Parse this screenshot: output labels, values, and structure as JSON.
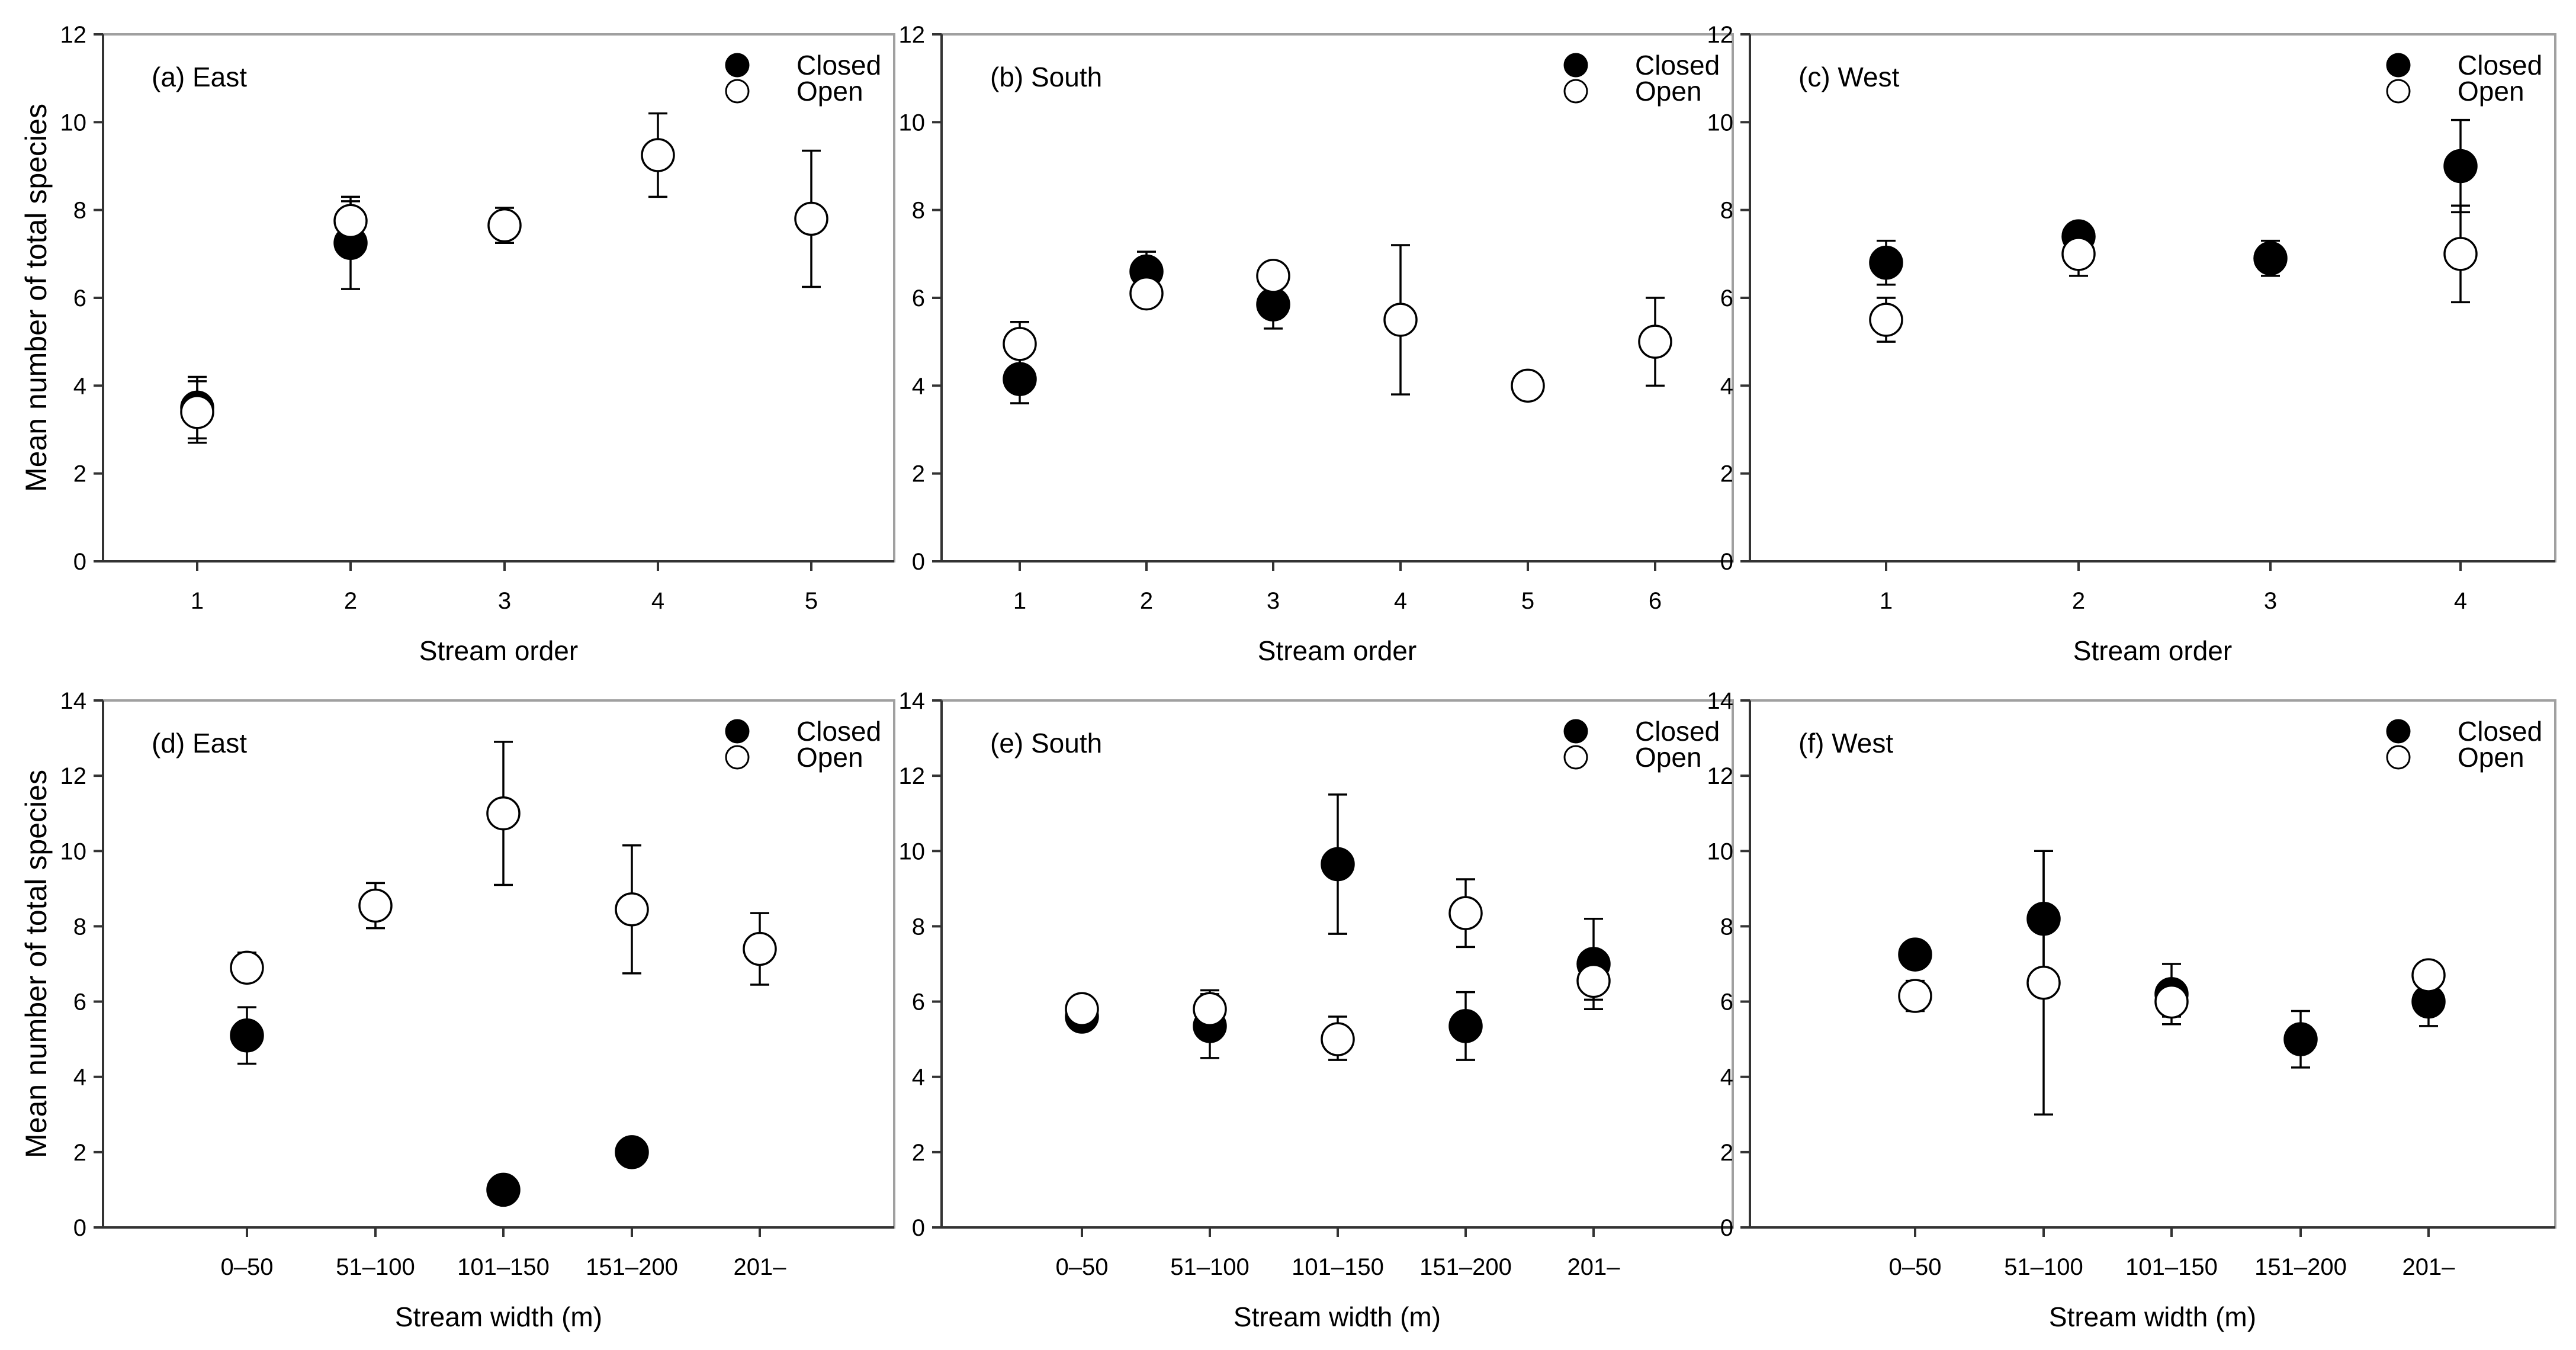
{
  "shared": {
    "ylabel": "Mean number of total species",
    "legend_closed": "Closed",
    "legend_open": "Open",
    "colors": {
      "closed": "#000000",
      "open": "#ffffff",
      "axis": "#333333",
      "frame": "#a0a0a0"
    }
  },
  "chart_data": [
    {
      "id": "a",
      "type": "scatter",
      "title": "(a) East",
      "xlabel": "Stream order",
      "ylabel": "Mean number of total species",
      "ylim": [
        0,
        12
      ],
      "yticks": [
        0,
        2,
        4,
        6,
        8,
        10,
        12
      ],
      "categories": [
        "1",
        "2",
        "3",
        "4",
        "5"
      ],
      "series": [
        {
          "name": "Closed",
          "points": [
            {
              "cat": 0,
              "y": 3.5,
              "lo": 2.8,
              "hi": 4.2
            },
            {
              "cat": 1,
              "y": 7.25,
              "lo": 6.2,
              "hi": 8.2
            }
          ]
        },
        {
          "name": "Open",
          "points": [
            {
              "cat": 0,
              "y": 3.4,
              "lo": 2.7,
              "hi": 4.1
            },
            {
              "cat": 1,
              "y": 7.75,
              "lo": 7.3,
              "hi": 8.3
            },
            {
              "cat": 2,
              "y": 7.65,
              "lo": 7.25,
              "hi": 8.05
            },
            {
              "cat": 3,
              "y": 9.25,
              "lo": 8.3,
              "hi": 10.2
            },
            {
              "cat": 4,
              "y": 7.8,
              "lo": 6.25,
              "hi": 9.35
            }
          ]
        }
      ]
    },
    {
      "id": "b",
      "type": "scatter",
      "title": "(b) South",
      "xlabel": "Stream order",
      "ylabel": "",
      "ylim": [
        0,
        12
      ],
      "yticks": [
        0,
        2,
        4,
        6,
        8,
        10,
        12
      ],
      "categories": [
        "1",
        "2",
        "3",
        "4",
        "5",
        "6"
      ],
      "series": [
        {
          "name": "Closed",
          "points": [
            {
              "cat": 0,
              "y": 4.15,
              "lo": 3.6,
              "hi": 4.7
            },
            {
              "cat": 1,
              "y": 6.6,
              "lo": 6.2,
              "hi": 7.05
            },
            {
              "cat": 2,
              "y": 5.85,
              "lo": 5.3,
              "hi": 6.4
            }
          ]
        },
        {
          "name": "Open",
          "points": [
            {
              "cat": 0,
              "y": 4.95,
              "lo": 4.45,
              "hi": 5.45
            },
            {
              "cat": 1,
              "y": 6.1,
              "lo": 5.9,
              "hi": 6.3
            },
            {
              "cat": 2,
              "y": 6.5,
              "lo": 6.2,
              "hi": 6.8
            },
            {
              "cat": 3,
              "y": 5.5,
              "lo": 3.8,
              "hi": 7.2
            },
            {
              "cat": 4,
              "y": 4.0,
              "lo": 4.0,
              "hi": 4.0
            },
            {
              "cat": 5,
              "y": 5.0,
              "lo": 4.0,
              "hi": 6.0
            }
          ]
        }
      ]
    },
    {
      "id": "c",
      "type": "scatter",
      "title": "(c) West",
      "xlabel": "Stream order",
      "ylabel": "",
      "ylim": [
        0,
        12
      ],
      "yticks": [
        0,
        2,
        4,
        6,
        8,
        10,
        12
      ],
      "categories": [
        "1",
        "2",
        "3",
        "4"
      ],
      "series": [
        {
          "name": "Closed",
          "points": [
            {
              "cat": 0,
              "y": 6.8,
              "lo": 6.3,
              "hi": 7.3
            },
            {
              "cat": 1,
              "y": 7.4,
              "lo": 7.1,
              "hi": 7.7
            },
            {
              "cat": 2,
              "y": 6.9,
              "lo": 6.5,
              "hi": 7.3
            },
            {
              "cat": 3,
              "y": 9.0,
              "lo": 7.95,
              "hi": 10.05
            }
          ]
        },
        {
          "name": "Open",
          "points": [
            {
              "cat": 0,
              "y": 5.5,
              "lo": 5.0,
              "hi": 6.0
            },
            {
              "cat": 1,
              "y": 7.0,
              "lo": 6.5,
              "hi": 7.5
            },
            {
              "cat": 3,
              "y": 7.0,
              "lo": 5.9,
              "hi": 8.1
            }
          ]
        }
      ]
    },
    {
      "id": "d",
      "type": "scatter",
      "title": "(d) East",
      "xlabel": "Stream width (m)",
      "ylabel": "Mean number of total species",
      "ylim": [
        0,
        14
      ],
      "yticks": [
        0,
        2,
        4,
        6,
        8,
        10,
        12,
        14
      ],
      "categories": [
        "0–50",
        "51–100",
        "101–150",
        "151–200",
        "201–"
      ],
      "series": [
        {
          "name": "Closed",
          "points": [
            {
              "cat": 0,
              "y": 5.1,
              "lo": 4.35,
              "hi": 5.85
            },
            {
              "cat": 2,
              "y": 1.0,
              "lo": 1.0,
              "hi": 1.0
            },
            {
              "cat": 3,
              "y": 2.0,
              "lo": 2.0,
              "hi": 2.0
            }
          ]
        },
        {
          "name": "Open",
          "points": [
            {
              "cat": 0,
              "y": 6.9,
              "lo": 6.6,
              "hi": 7.3
            },
            {
              "cat": 1,
              "y": 8.55,
              "lo": 7.95,
              "hi": 9.15
            },
            {
              "cat": 2,
              "y": 11.0,
              "lo": 9.1,
              "hi": 12.9
            },
            {
              "cat": 3,
              "y": 8.45,
              "lo": 6.75,
              "hi": 10.15
            },
            {
              "cat": 4,
              "y": 7.4,
              "lo": 6.45,
              "hi": 8.35
            }
          ]
        }
      ]
    },
    {
      "id": "e",
      "type": "scatter",
      "title": "(e) South",
      "xlabel": "Stream width (m)",
      "ylabel": "",
      "ylim": [
        0,
        14
      ],
      "yticks": [
        0,
        2,
        4,
        6,
        8,
        10,
        12,
        14
      ],
      "categories": [
        "0–50",
        "51–100",
        "101–150",
        "151–200",
        "201–"
      ],
      "series": [
        {
          "name": "Closed",
          "points": [
            {
              "cat": 0,
              "y": 5.6,
              "lo": 5.25,
              "hi": 5.95
            },
            {
              "cat": 1,
              "y": 5.35,
              "lo": 4.5,
              "hi": 6.2
            },
            {
              "cat": 2,
              "y": 9.65,
              "lo": 7.8,
              "hi": 11.5
            },
            {
              "cat": 3,
              "y": 5.35,
              "lo": 4.45,
              "hi": 6.25
            },
            {
              "cat": 4,
              "y": 7.0,
              "lo": 5.8,
              "hi": 8.2
            }
          ]
        },
        {
          "name": "Open",
          "points": [
            {
              "cat": 0,
              "y": 5.8,
              "lo": 5.6,
              "hi": 6.0
            },
            {
              "cat": 1,
              "y": 5.8,
              "lo": 5.3,
              "hi": 6.3
            },
            {
              "cat": 2,
              "y": 5.0,
              "lo": 4.45,
              "hi": 5.6
            },
            {
              "cat": 3,
              "y": 8.35,
              "lo": 7.45,
              "hi": 9.25
            },
            {
              "cat": 4,
              "y": 6.55,
              "lo": 6.05,
              "hi": 7.05
            }
          ]
        }
      ]
    },
    {
      "id": "f",
      "type": "scatter",
      "title": "(f) West",
      "xlabel": "Stream width (m)",
      "ylabel": "",
      "ylim": [
        0,
        14
      ],
      "yticks": [
        0,
        2,
        4,
        6,
        8,
        10,
        12,
        14
      ],
      "categories": [
        "0–50",
        "51–100",
        "101–150",
        "151–200",
        "201–"
      ],
      "series": [
        {
          "name": "Closed",
          "points": [
            {
              "cat": 0,
              "y": 7.25,
              "lo": 7.0,
              "hi": 7.5
            },
            {
              "cat": 1,
              "y": 8.2,
              "lo": 6.4,
              "hi": 10.0
            },
            {
              "cat": 2,
              "y": 6.2,
              "lo": 5.4,
              "hi": 7.0
            },
            {
              "cat": 3,
              "y": 5.0,
              "lo": 4.25,
              "hi": 5.75
            },
            {
              "cat": 4,
              "y": 6.0,
              "lo": 5.35,
              "hi": 6.65
            }
          ]
        },
        {
          "name": "Open",
          "points": [
            {
              "cat": 0,
              "y": 6.15,
              "lo": 5.75,
              "hi": 6.55
            },
            {
              "cat": 1,
              "y": 6.5,
              "lo": 3.0,
              "hi": 10.0
            },
            {
              "cat": 2,
              "y": 6.0,
              "lo": 5.6,
              "hi": 6.4
            },
            {
              "cat": 4,
              "y": 6.7,
              "lo": 6.4,
              "hi": 7.0
            }
          ]
        }
      ]
    }
  ]
}
